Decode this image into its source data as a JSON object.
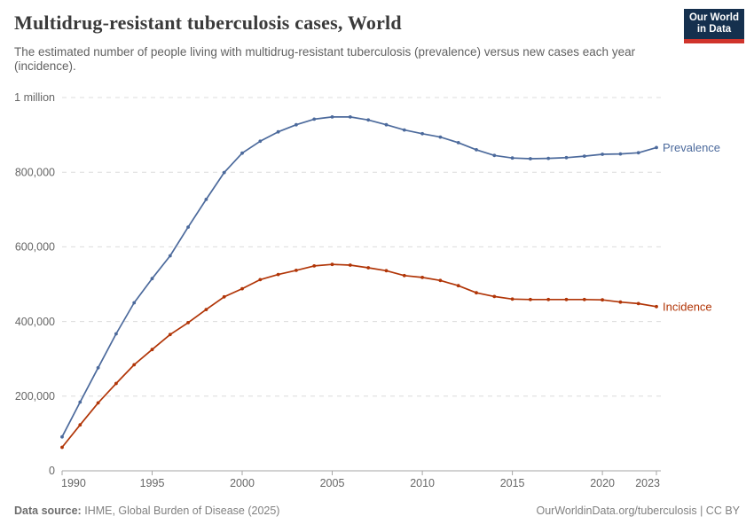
{
  "header": {
    "title": "Multidrug-resistant tuberculosis cases, World",
    "subtitle": "The estimated number of people living with multidrug-resistant tuberculosis (prevalence) versus new cases each year (incidence).",
    "logo": {
      "line1": "Our World",
      "line2": "in Data",
      "bg_color": "#15304E",
      "accent_color": "#D0342C"
    }
  },
  "chart_data": {
    "type": "line",
    "title": "Multidrug-resistant tuberculosis cases, World",
    "xlabel": "",
    "ylabel": "",
    "grid": "horizontal-dashed",
    "legend_position": "line-end-labels",
    "ylim": [
      0,
      1000000
    ],
    "xlim": [
      1990,
      2023
    ],
    "x": [
      1990,
      1991,
      1992,
      1993,
      1994,
      1995,
      1996,
      1997,
      1998,
      1999,
      2000,
      2001,
      2002,
      2003,
      2004,
      2005,
      2006,
      2007,
      2008,
      2009,
      2010,
      2011,
      2012,
      2013,
      2014,
      2015,
      2016,
      2017,
      2018,
      2019,
      2020,
      2021,
      2022,
      2023
    ],
    "series": [
      {
        "name": "Prevalence",
        "color": "#4C6A9C",
        "values": [
          91000,
          184000,
          276000,
          367000,
          450000,
          515000,
          576000,
          653000,
          727000,
          799000,
          851000,
          883000,
          908000,
          927000,
          942000,
          948000,
          948000,
          940000,
          927000,
          913000,
          903000,
          894000,
          879000,
          860000,
          845000,
          838000,
          836000,
          837000,
          839000,
          843000,
          848000,
          849000,
          852000,
          866000
        ]
      },
      {
        "name": "Incidence",
        "color": "#B13507",
        "values": [
          63000,
          123000,
          182000,
          234000,
          284000,
          325000,
          365000,
          397000,
          432000,
          466000,
          488000,
          512000,
          526000,
          537000,
          549000,
          553000,
          551000,
          544000,
          536000,
          523000,
          518000,
          510000,
          496000,
          477000,
          467000,
          460000,
          459000,
          459000,
          459000,
          459000,
          458000,
          452000,
          448000,
          440000
        ]
      }
    ],
    "yticks": [
      {
        "value": 0,
        "label": "0"
      },
      {
        "value": 200000,
        "label": "200,000"
      },
      {
        "value": 400000,
        "label": "400,000"
      },
      {
        "value": 600000,
        "label": "600,000"
      },
      {
        "value": 800000,
        "label": "800,000"
      },
      {
        "value": 1000000,
        "label": "1 million"
      }
    ],
    "xticks": [
      1990,
      1995,
      2000,
      2005,
      2010,
      2015,
      2020,
      2023
    ]
  },
  "footer": {
    "source_label": "Data source:",
    "source_value": "IHME, Global Burden of Disease (2025)",
    "credit": "OurWorldinData.org/tuberculosis | CC BY"
  }
}
